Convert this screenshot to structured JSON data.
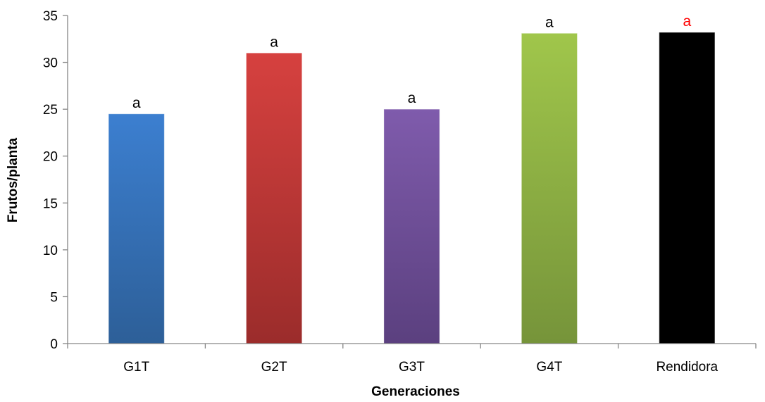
{
  "chart_data": {
    "type": "bar",
    "categories": [
      "G1T",
      "G2T",
      "G3T",
      "G4T",
      "Rendidora"
    ],
    "values": [
      24.5,
      31,
      25,
      33.1,
      33.2
    ],
    "data_labels": [
      "a",
      "a",
      "a",
      "a",
      "a"
    ],
    "label_colors": [
      "#000000",
      "#000000",
      "#000000",
      "#000000",
      "#ff0000"
    ],
    "bar_colors": [
      [
        "#3c7fd0",
        "#2d5f98"
      ],
      [
        "#d6413f",
        "#9b2c2b"
      ],
      [
        "#7f5bac",
        "#5b407f"
      ],
      [
        "#a0c64b",
        "#76943a"
      ],
      [
        "#000000",
        "#000000"
      ]
    ],
    "xlabel": "Generaciones",
    "ylabel": "Frutos/planta",
    "ylim": [
      0,
      35
    ],
    "yticks": [
      0,
      5,
      10,
      15,
      20,
      25,
      30,
      35
    ],
    "grid": false,
    "legend": "none"
  }
}
